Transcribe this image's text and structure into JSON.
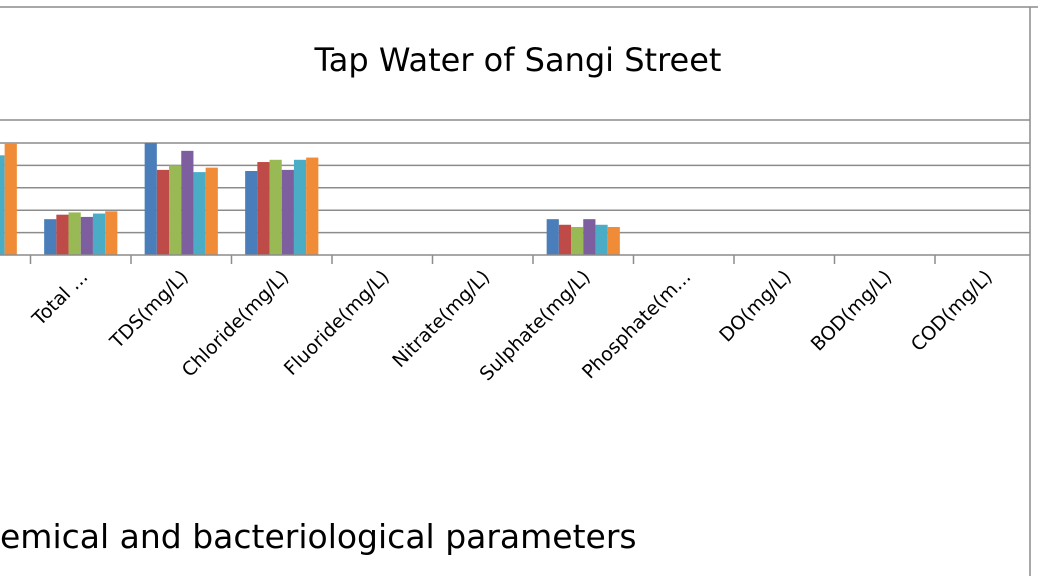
{
  "chart_data": {
    "type": "bar",
    "title": "Tap Water of Sangi Street",
    "xlabel": "emical and bacteriological parameters",
    "ylabel": "",
    "grid": true,
    "categories": [
      "",
      "Total ...",
      "TDS(mg/L)",
      "Chloride(mg/L)",
      "Fluoride(mg/L)",
      "Nitrate(mg/L)",
      "Sulphate(mg/L)",
      "Phosphate(m...",
      "DO(mg/L)",
      "BOD(mg/L)",
      "COD(mg/L)",
      ""
    ],
    "ylim": [
      0,
      5
    ],
    "series": [
      {
        "values": [
          null,
          1.6,
          5.0,
          3.75,
          0,
          0,
          1.6,
          0,
          0,
          0,
          0,
          null
        ],
        "color": "#4a7ebb"
      },
      {
        "values": [
          null,
          1.8,
          3.8,
          4.15,
          0,
          0,
          1.35,
          0,
          0,
          0,
          0,
          null
        ],
        "color": "#be4b48"
      },
      {
        "values": [
          null,
          1.9,
          4.0,
          4.25,
          0,
          0,
          1.25,
          0,
          0,
          0,
          0,
          null
        ],
        "color": "#98b954"
      },
      {
        "values": [
          null,
          1.7,
          4.65,
          3.8,
          0,
          0,
          1.6,
          0,
          0,
          0,
          0,
          null
        ],
        "color": "#7d5fa0"
      },
      {
        "values": [
          4.45,
          1.85,
          3.7,
          4.25,
          0,
          0,
          1.35,
          0,
          0,
          0,
          0,
          null
        ],
        "color": "#4bacc6"
      },
      {
        "values": [
          5.0,
          1.95,
          3.9,
          4.35,
          0,
          0,
          1.25,
          0,
          0,
          0,
          0,
          null
        ],
        "color": "#f08c38"
      }
    ]
  }
}
